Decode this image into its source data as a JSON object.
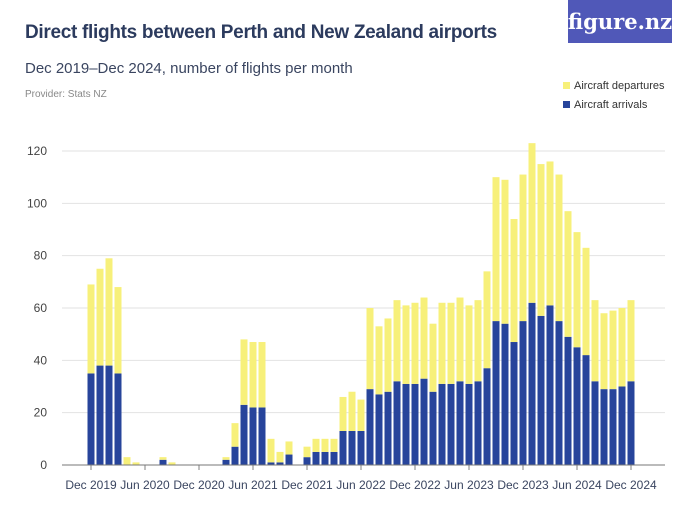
{
  "header": {
    "title": "Direct flights between Perth and New Zealand airports",
    "subtitle": "Dec 2019–Dec 2024, number of flights per month",
    "provider": "Provider: Stats NZ",
    "logo": "figure.nz"
  },
  "chart_data": {
    "type": "bar",
    "stacked": true,
    "title": "Direct flights between Perth and New Zealand airports",
    "ylim": [
      0,
      120
    ],
    "yticks": [
      0,
      20,
      40,
      60,
      80,
      100,
      120
    ],
    "grid": true,
    "legend": "top-right",
    "xticks": [
      "Dec 2019",
      "Jun 2020",
      "Dec 2020",
      "Jun 2021",
      "Dec 2021",
      "Jun 2022",
      "Dec 2022",
      "Jun 2023",
      "Dec 2023",
      "Jun 2024",
      "Dec 2024"
    ],
    "categories": [
      "Dec 2019",
      "Jan 2020",
      "Feb 2020",
      "Mar 2020",
      "Apr 2020",
      "May 2020",
      "Jun 2020",
      "Jul 2020",
      "Aug 2020",
      "Sep 2020",
      "Oct 2020",
      "Nov 2020",
      "Dec 2020",
      "Jan 2021",
      "Feb 2021",
      "Mar 2021",
      "Apr 2021",
      "May 2021",
      "Jun 2021",
      "Jul 2021",
      "Aug 2021",
      "Sep 2021",
      "Oct 2021",
      "Nov 2021",
      "Dec 2021",
      "Jan 2022",
      "Feb 2022",
      "Mar 2022",
      "Apr 2022",
      "May 2022",
      "Jun 2022",
      "Jul 2022",
      "Aug 2022",
      "Sep 2022",
      "Oct 2022",
      "Nov 2022",
      "Dec 2022",
      "Jan 2023",
      "Feb 2023",
      "Mar 2023",
      "Apr 2023",
      "May 2023",
      "Jun 2023",
      "Jul 2023",
      "Aug 2023",
      "Sep 2023",
      "Oct 2023",
      "Nov 2023",
      "Dec 2023",
      "Jan 2024",
      "Feb 2024",
      "Mar 2024",
      "Apr 2024",
      "May 2024",
      "Jun 2024",
      "Jul 2024",
      "Aug 2024",
      "Sep 2024",
      "Oct 2024",
      "Nov 2024",
      "Dec 2024"
    ],
    "series": [
      {
        "name": "Aircraft arrivals",
        "color": "#27449b",
        "values": [
          35,
          38,
          38,
          35,
          0,
          0,
          0,
          0,
          2,
          0,
          0,
          0,
          0,
          0,
          0,
          2,
          7,
          23,
          22,
          22,
          1,
          1,
          4,
          0,
          3,
          5,
          5,
          5,
          13,
          13,
          13,
          29,
          27,
          28,
          32,
          31,
          31,
          33,
          28,
          31,
          31,
          32,
          31,
          32,
          37,
          55,
          54,
          47,
          55,
          62,
          57,
          61,
          55,
          49,
          45,
          42,
          32,
          29,
          29,
          30,
          32
        ]
      },
      {
        "name": "Aircraft departures",
        "color": "#f7f07a",
        "values": [
          34,
          37,
          41,
          33,
          3,
          1,
          0,
          0,
          1,
          1,
          0,
          0,
          0,
          0,
          0,
          1,
          9,
          25,
          25,
          25,
          9,
          4,
          5,
          0,
          4,
          5,
          5,
          5,
          13,
          15,
          12,
          31,
          26,
          28,
          31,
          30,
          31,
          31,
          26,
          31,
          31,
          32,
          30,
          31,
          37,
          55,
          55,
          47,
          56,
          61,
          58,
          55,
          56,
          48,
          44,
          41,
          31,
          29,
          30,
          30,
          31
        ]
      }
    ]
  }
}
